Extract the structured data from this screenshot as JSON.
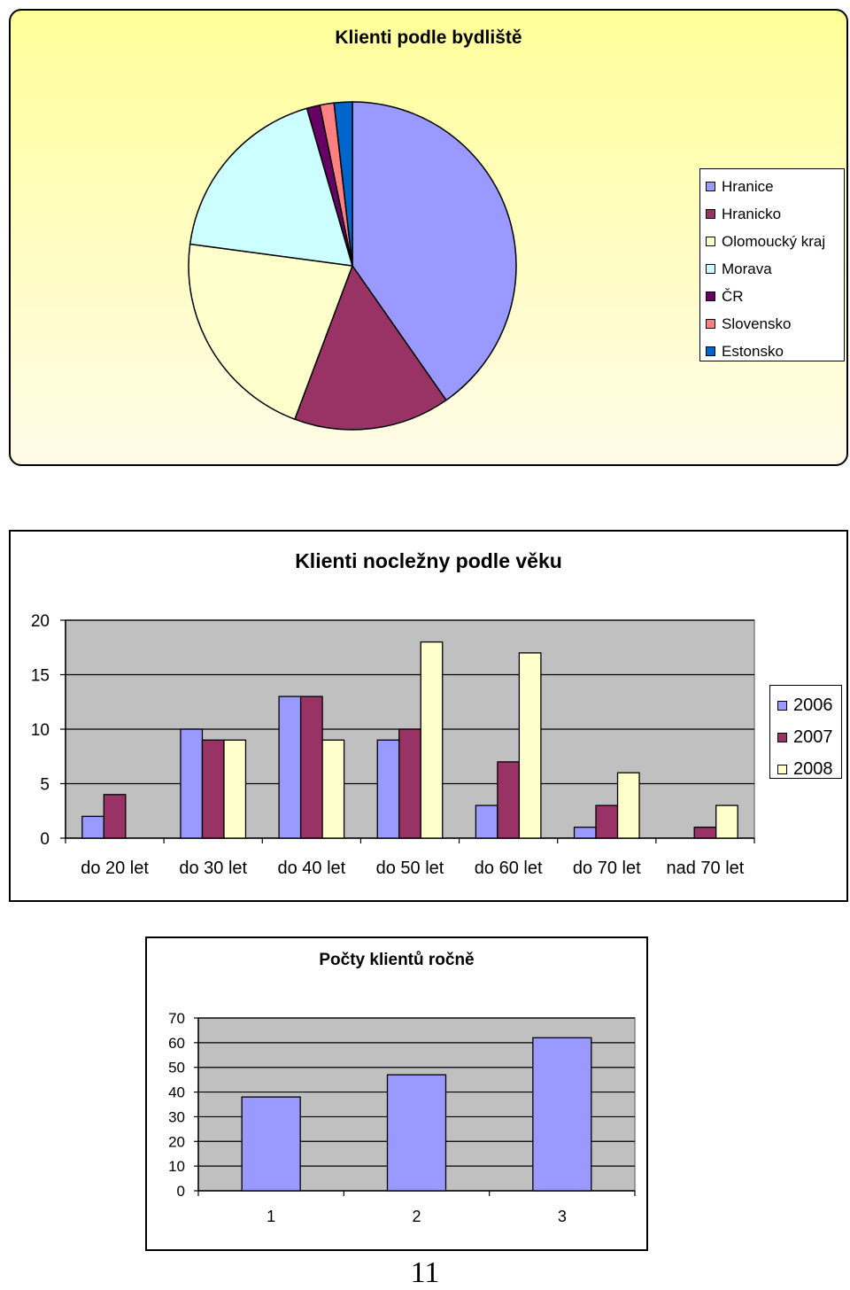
{
  "page": {
    "number": "11"
  },
  "chart_data": [
    {
      "type": "pie",
      "title": "Klienti podle bydliště",
      "categories": [
        "Hranice",
        "Hranicko",
        "Olomoucký kraj",
        "Morava",
        "ČR",
        "Slovensko",
        "Estonsko"
      ],
      "values": [
        40.5,
        15.5,
        21.5,
        18.5,
        1.3,
        1.4,
        1.8
      ],
      "colors": [
        "#9999ff",
        "#993366",
        "#ffffcc",
        "#ccffff",
        "#660066",
        "#ff8080",
        "#0066cc"
      ],
      "legend": "right"
    },
    {
      "type": "bar",
      "title": "Klienti nocležny podle věku",
      "categories": [
        "do 20 let",
        "do 30 let",
        "do 40 let",
        "do 50 let",
        "do 60 let",
        "do 70 let",
        "nad 70 let"
      ],
      "series": [
        {
          "name": "2006",
          "values": [
            2,
            10,
            13,
            9,
            3,
            1,
            0
          ],
          "color": "#9999ff"
        },
        {
          "name": "2007",
          "values": [
            4,
            9,
            13,
            10,
            7,
            3,
            1
          ],
          "color": "#993366"
        },
        {
          "name": "2008",
          "values": [
            0,
            9,
            9,
            18,
            17,
            6,
            3
          ],
          "color": "#ffffcc"
        }
      ],
      "ylim": [
        0,
        20
      ],
      "yticks": [
        0,
        5,
        10,
        15,
        20
      ],
      "grid": true,
      "plot_background": "#c0c0c0",
      "legend": "right"
    },
    {
      "type": "bar",
      "title": "Počty klientů ročně",
      "categories": [
        "1",
        "2",
        "3"
      ],
      "values": [
        38,
        47,
        62
      ],
      "color": "#9999ff",
      "ylim": [
        0,
        70
      ],
      "yticks": [
        0,
        10,
        20,
        30,
        40,
        50,
        60,
        70
      ],
      "grid": true,
      "plot_background": "#c0c0c0"
    }
  ]
}
